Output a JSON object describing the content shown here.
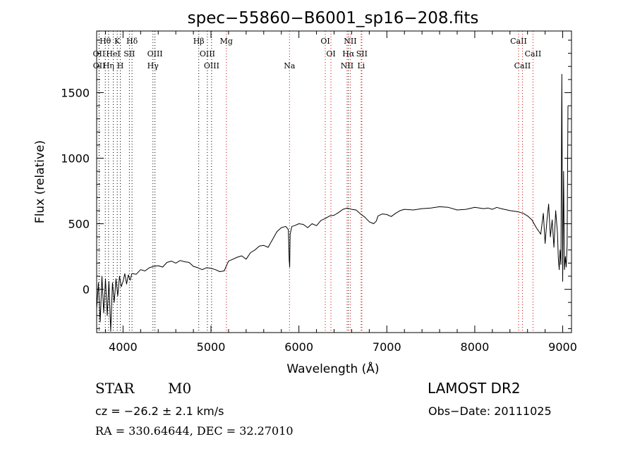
{
  "chart_data": {
    "type": "line",
    "title": "spec−55860−B6001_sp16−208.fits",
    "xlabel": "Wavelength (Å)",
    "ylabel": "Flux (relative)",
    "xlim": [
      3700,
      9100
    ],
    "ylim": [
      -330,
      1970
    ],
    "x_ticks": [
      4000,
      5000,
      6000,
      7000,
      8000,
      9000
    ],
    "y_ticks": [
      0,
      500,
      1000,
      1500
    ],
    "grid": false,
    "series": [
      {
        "color": "#000000",
        "x": [
          3700,
          3720,
          3740,
          3760,
          3780,
          3800,
          3820,
          3840,
          3860,
          3880,
          3900,
          3920,
          3940,
          3960,
          3980,
          4000,
          4020,
          4040,
          4060,
          4080,
          4100,
          4150,
          4200,
          4250,
          4300,
          4350,
          4400,
          4450,
          4500,
          4550,
          4600,
          4650,
          4700,
          4750,
          4800,
          4850,
          4900,
          4950,
          5000,
          5050,
          5100,
          5150,
          5200,
          5250,
          5300,
          5350,
          5400,
          5450,
          5500,
          5550,
          5600,
          5650,
          5700,
          5750,
          5800,
          5850,
          5880,
          5890,
          5895,
          5900,
          5920,
          5950,
          6000,
          6050,
          6100,
          6150,
          6200,
          6250,
          6300,
          6350,
          6400,
          6450,
          6500,
          6550,
          6600,
          6650,
          6700,
          6750,
          6800,
          6850,
          6880,
          6900,
          6950,
          7000,
          7050,
          7100,
          7150,
          7200,
          7300,
          7400,
          7500,
          7600,
          7700,
          7800,
          7900,
          8000,
          8100,
          8150,
          8200,
          8250,
          8300,
          8400,
          8500,
          8550,
          8600,
          8650,
          8700,
          8750,
          8780,
          8800,
          8820,
          8840,
          8860,
          8880,
          8900,
          8920,
          8940,
          8950,
          8960,
          8970,
          8980,
          8990,
          9000,
          9010,
          9020,
          9030,
          9040,
          9050,
          9060
        ],
        "y": [
          -150,
          50,
          -250,
          100,
          -180,
          80,
          -200,
          60,
          -320,
          50,
          -100,
          80,
          -50,
          100,
          20,
          60,
          120,
          40,
          110,
          70,
          120,
          115,
          150,
          140,
          165,
          175,
          180,
          170,
          205,
          215,
          200,
          220,
          210,
          205,
          175,
          165,
          150,
          165,
          160,
          150,
          135,
          140,
          215,
          230,
          245,
          255,
          230,
          280,
          300,
          330,
          335,
          320,
          380,
          440,
          470,
          480,
          455,
          220,
          170,
          420,
          480,
          485,
          500,
          495,
          470,
          500,
          485,
          525,
          540,
          560,
          565,
          585,
          610,
          620,
          610,
          605,
          575,
          550,
          515,
          500,
          520,
          560,
          575,
          570,
          555,
          580,
          600,
          610,
          605,
          615,
          620,
          630,
          625,
          605,
          610,
          625,
          615,
          620,
          610,
          625,
          615,
          600,
          590,
          580,
          560,
          530,
          470,
          420,
          580,
          350,
          520,
          650,
          400,
          530,
          320,
          600,
          430,
          240,
          150,
          300,
          190,
          1640,
          60,
          900,
          150,
          250,
          170,
          340,
          1400
        ]
      }
    ],
    "spectral_lines": [
      {
        "label": "Hθ",
        "wavelength": 3798,
        "color": "#000000",
        "row": 1
      },
      {
        "label": "K",
        "wavelength": 3934,
        "color": "#000000",
        "row": 1
      },
      {
        "label": "Hδ",
        "wavelength": 4102,
        "color": "#000000",
        "row": 1
      },
      {
        "label": "Hβ",
        "wavelength": 4861,
        "color": "#000000",
        "row": 1
      },
      {
        "label": "Mg",
        "wavelength": 5175,
        "color": "#cc0000",
        "row": 1
      },
      {
        "label": "OI",
        "wavelength": 6300,
        "color": "#cc0000",
        "row": 1
      },
      {
        "label": "NII",
        "wavelength": 6584,
        "color": "#cc0000",
        "row": 1
      },
      {
        "label": "CaII",
        "wavelength": 8498,
        "color": "#cc0000",
        "row": 1
      },
      {
        "label": "OII",
        "wavelength": 3727,
        "color": "#000000",
        "row": 2
      },
      {
        "label": "HeI",
        "wavelength": 3889,
        "color": "#000000",
        "row": 2
      },
      {
        "label": "SII",
        "wavelength": 4072,
        "color": "#000000",
        "row": 2
      },
      {
        "label": "OIII",
        "wavelength": 4363,
        "color": "#000000",
        "row": 2
      },
      {
        "label": "OIII",
        "wavelength": 4959,
        "color": "#000000",
        "row": 2
      },
      {
        "label": "OI",
        "wavelength": 6364,
        "color": "#cc0000",
        "row": 2
      },
      {
        "label": "Hα",
        "wavelength": 6563,
        "color": "#000000",
        "row": 2
      },
      {
        "label": "SII",
        "wavelength": 6716,
        "color": "#cc0000",
        "row": 2
      },
      {
        "label": "CaII",
        "wavelength": 8662,
        "color": "#cc0000",
        "row": 2
      },
      {
        "label": "OII",
        "wavelength": 3729,
        "color": "#000000",
        "row": 3
      },
      {
        "label": "Hη",
        "wavelength": 3835,
        "color": "#000000",
        "row": 3
      },
      {
        "label": "H",
        "wavelength": 3969,
        "color": "#000000",
        "row": 3
      },
      {
        "label": "Hγ",
        "wavelength": 4340,
        "color": "#000000",
        "row": 3
      },
      {
        "label": "OIII",
        "wavelength": 5007,
        "color": "#000000",
        "row": 3
      },
      {
        "label": "Na",
        "wavelength": 5893,
        "color": "#cc0000",
        "row": 3
      },
      {
        "label": "NII",
        "wavelength": 6548,
        "color": "#cc0000",
        "row": 3
      },
      {
        "label": "Li",
        "wavelength": 6708,
        "color": "#cc0000",
        "row": 3
      },
      {
        "label": "CaII",
        "wavelength": 8542,
        "color": "#cc0000",
        "row": 3
      }
    ]
  },
  "info": {
    "class_label": "STAR",
    "subclass": "M0",
    "redshift": "cz = −26.2 ± 2.1 km/s",
    "coords": "RA = 330.64644, DEC =  32.27010",
    "survey": "LAMOST DR2",
    "obs_date": "Obs−Date: 20111025"
  }
}
